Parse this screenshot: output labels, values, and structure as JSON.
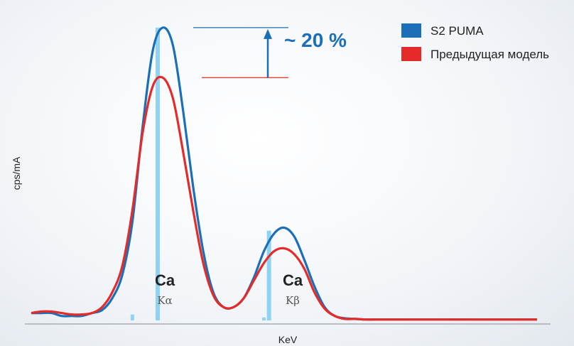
{
  "chart_data": {
    "type": "line",
    "title": "",
    "xlabel": "KeV",
    "ylabel": "cps/mA",
    "x": [
      0,
      2,
      4,
      6,
      8,
      10,
      12,
      14,
      16,
      18,
      20,
      22,
      24,
      26,
      28,
      30,
      32,
      34,
      36,
      38,
      40,
      42,
      44,
      46,
      48,
      50,
      52,
      54,
      56,
      58,
      60,
      62,
      64,
      66,
      68,
      70,
      72,
      74,
      76,
      78,
      80,
      82,
      84,
      86,
      88,
      90,
      92,
      94,
      96,
      98,
      100
    ],
    "ylim": [
      0,
      110
    ],
    "grid": false,
    "legend_position": "top-right",
    "series": [
      {
        "name": "S2 PUMA",
        "color": "#1b6fb8",
        "values": [
          3,
          3,
          3,
          2,
          2,
          2,
          3,
          4,
          8,
          16,
          34,
          66,
          92,
          100,
          94,
          72,
          46,
          24,
          10,
          5,
          5,
          8,
          15,
          24,
          30,
          32,
          29,
          21,
          12,
          5,
          2,
          1.2,
          1,
          0.8,
          0.8,
          0.8,
          0.8,
          0.8,
          0.8,
          0.8,
          0.8,
          0.8,
          0.8,
          0.8,
          0.8,
          0.8,
          0.8,
          0.8,
          0.8,
          0.8,
          0.8
        ]
      },
      {
        "name": "Предыдущая модель",
        "color": "#e52a2a",
        "values": [
          3,
          3.5,
          3.5,
          3,
          2.5,
          2.5,
          3,
          5,
          10,
          19,
          38,
          64,
          80,
          83,
          76,
          58,
          38,
          20,
          9,
          5,
          5,
          8,
          14,
          20,
          24,
          25,
          23,
          18,
          10,
          4.5,
          2,
          1,
          1,
          0.8,
          0.8,
          0.8,
          0.8,
          0.8,
          0.8,
          0.8,
          0.8,
          0.8,
          0.8,
          0.8,
          0.8,
          0.8,
          0.8,
          0.8,
          0.8,
          0.8,
          0.8
        ]
      }
    ],
    "reference_lines": [
      {
        "x": 25,
        "height": 100,
        "color": "#8fd3f4"
      },
      {
        "x": 47,
        "height": 31,
        "color": "#8fd3f4"
      },
      {
        "x": 20,
        "height": 2.5,
        "color": "#8fd3f4"
      },
      {
        "x": 46,
        "height": 1.5,
        "color": "#8fd3f4"
      }
    ],
    "annotations": {
      "increase_label": "~ 20 %",
      "increase_color": "#1b6fb8",
      "top_value": 100,
      "bottom_value": 83,
      "ka_element": "Ca",
      "ka_line": "Kα",
      "kb_element": "Ca",
      "kb_line": "Kβ"
    }
  }
}
